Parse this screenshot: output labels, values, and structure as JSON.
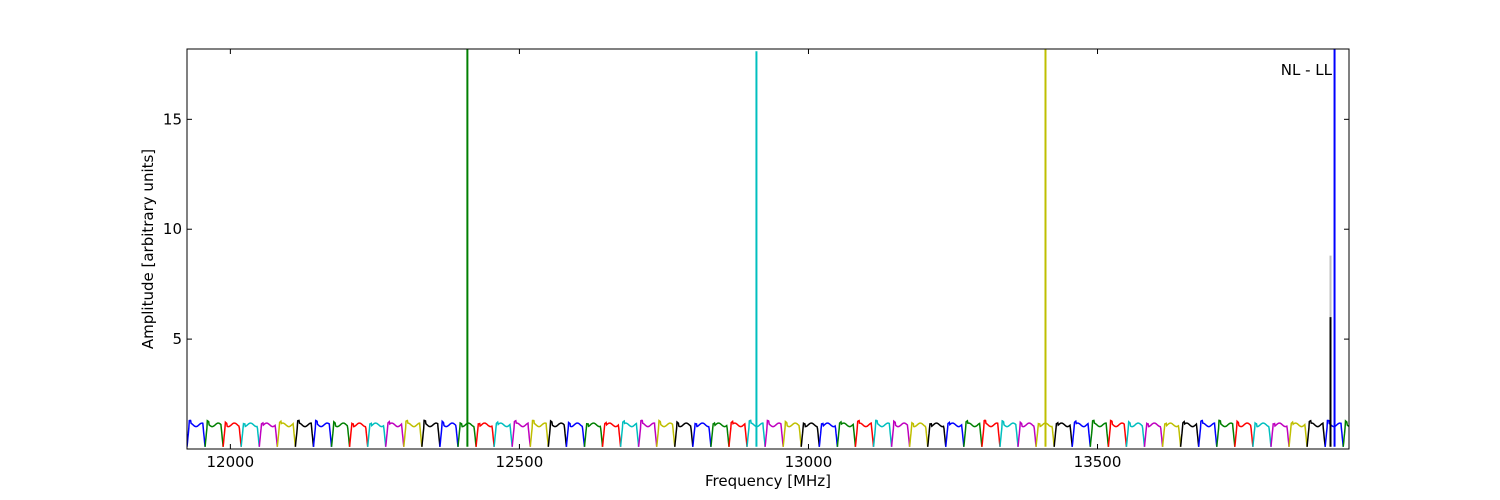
{
  "chart_data": {
    "type": "line",
    "title": "",
    "annotation": "NL - LL",
    "xlabel": "Frequency [MHz]",
    "ylabel": "Amplitude [arbitrary units]",
    "xlim": [
      11925,
      13935
    ],
    "ylim": [
      0,
      18.2
    ],
    "xticks": [
      12000,
      12500,
      13000,
      13500
    ],
    "yticks": [
      5,
      10,
      15
    ],
    "grid": false,
    "legend": "none",
    "colors": [
      "#0000ff",
      "#008000",
      "#ff0000",
      "#00bfbf",
      "#bf00bf",
      "#bfbf00",
      "#000000"
    ],
    "band_mhz": 31.25,
    "band_start": 11925,
    "band_pattern": {
      "note": "each 31.25 MHz subband shows a flat passband near 1.1 with dips to ~0.1 at the edges",
      "plateau": 1.1,
      "edge": 0.1
    },
    "spikes": [
      {
        "x": 12410,
        "y": 18.2,
        "color": "#008000"
      },
      {
        "x": 12910,
        "y": 18.1,
        "color": "#00bfbf"
      },
      {
        "x": 13410,
        "y": 18.2,
        "color": "#bfbf00"
      },
      {
        "x": 13903,
        "y": 8.8,
        "color": "#bfbfbf"
      },
      {
        "x": 13903,
        "y": 6.0,
        "color": "#000000"
      },
      {
        "x": 13910,
        "y": 18.2,
        "color": "#0000ff"
      }
    ]
  }
}
